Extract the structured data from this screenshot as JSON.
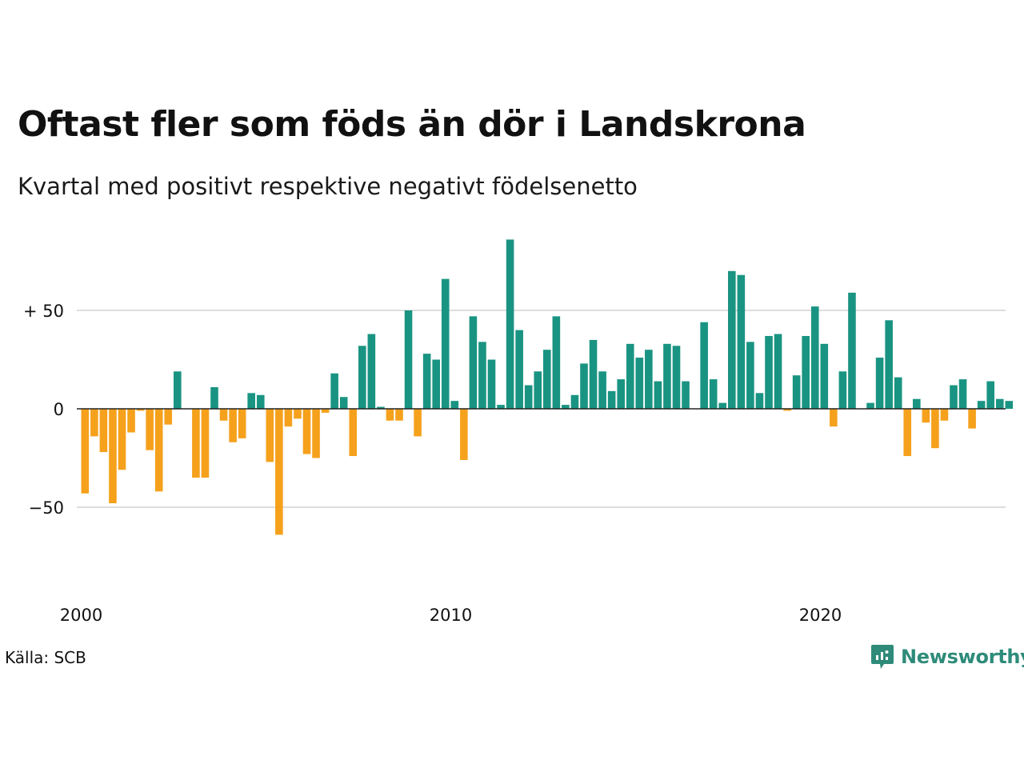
{
  "title": "Oftast fler som föds än dör i Landskrona",
  "subtitle": "Kvartal med positivt respektive negativt födelsenetto",
  "source": "Källa: SCB",
  "brand": "Newsworthy",
  "colors": {
    "positive": "#1a9482",
    "negative": "#f5a11c",
    "brand": "#2e8b7a"
  },
  "chart_data": {
    "type": "bar",
    "x_start": "2000 Q1",
    "x_ticks": [
      {
        "label": "2000",
        "quarter_index": 0
      },
      {
        "label": "2010",
        "quarter_index": 40
      },
      {
        "label": "2020",
        "quarter_index": 80
      }
    ],
    "y_ticks": [
      {
        "label": "+ 50",
        "value": 50
      },
      {
        "label": "0",
        "value": 0
      },
      {
        "label": "−50",
        "value": -50
      }
    ],
    "ylim": [
      -85,
      90
    ],
    "grid": true,
    "values": [
      -43,
      -14,
      -22,
      -48,
      -31,
      -12,
      -1,
      -21,
      -42,
      -8,
      19,
      0,
      -35,
      -35,
      11,
      -6,
      -17,
      -15,
      8,
      7,
      -27,
      -64,
      -9,
      -5,
      -23,
      -25,
      -2,
      18,
      6,
      -24,
      32,
      38,
      1,
      -6,
      -6,
      50,
      -14,
      28,
      25,
      66,
      4,
      -26,
      47,
      34,
      25,
      2,
      86,
      40,
      12,
      19,
      30,
      47,
      2,
      7,
      23,
      35,
      19,
      9,
      15,
      33,
      26,
      30,
      14,
      33,
      32,
      14,
      0,
      44,
      15,
      3,
      70,
      68,
      34,
      8,
      37,
      38,
      -1,
      17,
      37,
      52,
      33,
      -9,
      19,
      59,
      0,
      3,
      26,
      45,
      16,
      -24,
      5,
      -7,
      -20,
      -6,
      12,
      15,
      -10,
      4,
      14,
      5,
      4
    ]
  }
}
